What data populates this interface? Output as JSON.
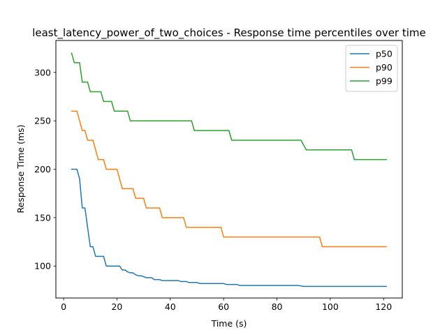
{
  "chart_data": {
    "type": "line",
    "title": "least_latency_power_of_two_choices - Response time percentiles over time",
    "xlabel": "Time (s)",
    "ylabel": "Response Time (ms)",
    "xlim": [
      -2.9,
      127
    ],
    "ylim": [
      67,
      333
    ],
    "xticks": [
      0,
      20,
      40,
      60,
      80,
      100,
      120
    ],
    "yticks": [
      100,
      150,
      200,
      250,
      300
    ],
    "grid": false,
    "legend_position": "top-right",
    "series": [
      {
        "name": "p50",
        "color": "#1f77b4",
        "points": [
          [
            3,
            200
          ],
          [
            5,
            200
          ],
          [
            6,
            190
          ],
          [
            7,
            160
          ],
          [
            8,
            160
          ],
          [
            9,
            140
          ],
          [
            10,
            120
          ],
          [
            11,
            120
          ],
          [
            12,
            110
          ],
          [
            15,
            110
          ],
          [
            16,
            100
          ],
          [
            21,
            100
          ],
          [
            22,
            96
          ],
          [
            23,
            96
          ],
          [
            24,
            94
          ],
          [
            25,
            93
          ],
          [
            26,
            93
          ],
          [
            27,
            91
          ],
          [
            28,
            90
          ],
          [
            29,
            90
          ],
          [
            30,
            89
          ],
          [
            31,
            88
          ],
          [
            33,
            88
          ],
          [
            34,
            86
          ],
          [
            36,
            86
          ],
          [
            37,
            85
          ],
          [
            43,
            85
          ],
          [
            44,
            84
          ],
          [
            46,
            84
          ],
          [
            47,
            83
          ],
          [
            50,
            83
          ],
          [
            51,
            82
          ],
          [
            60,
            82
          ],
          [
            61,
            81
          ],
          [
            65,
            81
          ],
          [
            66,
            80
          ],
          [
            88,
            80
          ],
          [
            90,
            79
          ],
          [
            121,
            79
          ]
        ]
      },
      {
        "name": "p90",
        "color": "#ff7f0e",
        "points": [
          [
            3,
            260
          ],
          [
            5,
            260
          ],
          [
            7,
            240
          ],
          [
            8,
            240
          ],
          [
            9,
            230
          ],
          [
            11,
            230
          ],
          [
            13,
            210
          ],
          [
            15,
            210
          ],
          [
            16,
            200
          ],
          [
            20,
            200
          ],
          [
            22,
            180
          ],
          [
            26,
            180
          ],
          [
            27,
            170
          ],
          [
            30,
            170
          ],
          [
            31,
            160
          ],
          [
            36,
            160
          ],
          [
            37,
            150
          ],
          [
            45,
            150
          ],
          [
            46,
            140
          ],
          [
            59,
            140
          ],
          [
            60,
            130
          ],
          [
            96,
            130
          ],
          [
            97,
            120
          ],
          [
            121,
            120
          ]
        ]
      },
      {
        "name": "p99",
        "color": "#2ca02c",
        "points": [
          [
            3,
            320
          ],
          [
            4,
            310
          ],
          [
            6,
            310
          ],
          [
            7,
            290
          ],
          [
            9,
            290
          ],
          [
            10,
            280
          ],
          [
            14,
            280
          ],
          [
            15,
            270
          ],
          [
            18,
            270
          ],
          [
            19,
            260
          ],
          [
            24,
            260
          ],
          [
            25,
            250
          ],
          [
            48,
            250
          ],
          [
            49,
            240
          ],
          [
            62,
            240
          ],
          [
            63,
            230
          ],
          [
            89,
            230
          ],
          [
            91,
            220
          ],
          [
            108,
            220
          ],
          [
            109,
            210
          ],
          [
            121,
            210
          ]
        ]
      }
    ]
  }
}
